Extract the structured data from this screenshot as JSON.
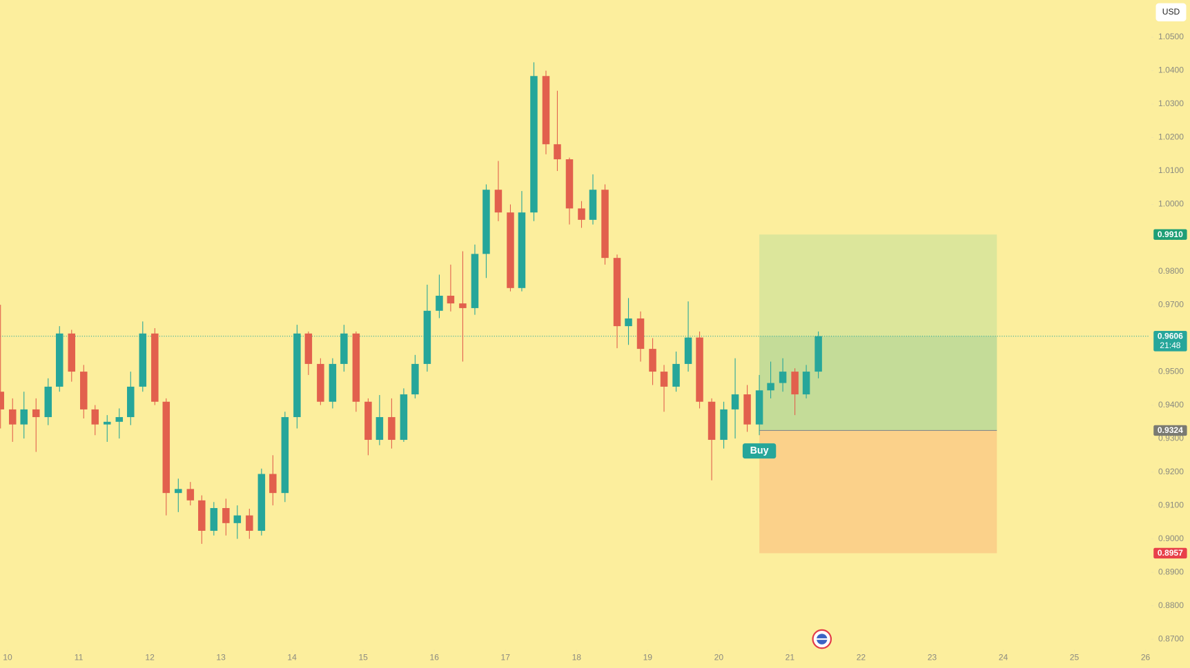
{
  "chart_data": {
    "type": "candlestick",
    "currency": "USD",
    "x": [
      9.9,
      10.07,
      10.23,
      10.4,
      10.57,
      10.73,
      10.9,
      11.07,
      11.23,
      11.4,
      11.57,
      11.73,
      11.9,
      12.07,
      12.23,
      12.4,
      12.57,
      12.73,
      12.9,
      13.07,
      13.23,
      13.4,
      13.57,
      13.73,
      13.9,
      14.07,
      14.23,
      14.4,
      14.57,
      14.73,
      14.9,
      15.07,
      15.23,
      15.4,
      15.57,
      15.73,
      15.9,
      16.07,
      16.23,
      16.4,
      16.57,
      16.73,
      16.9,
      17.07,
      17.23,
      17.4,
      17.57,
      17.73,
      17.9,
      18.07,
      18.23,
      18.4,
      18.57,
      18.73,
      18.9,
      19.07,
      19.23,
      19.4,
      19.57,
      19.73,
      19.9,
      20.07,
      20.23,
      20.4,
      20.57,
      20.73,
      20.9,
      21.07,
      21.23,
      21.4
    ],
    "open": [
      0.944,
      0.9387,
      0.9342,
      0.9387,
      0.9364,
      0.9455,
      0.9614,
      0.95,
      0.9387,
      0.9342,
      0.935,
      0.9364,
      0.9455,
      0.9614,
      0.941,
      0.9137,
      0.9149,
      0.9115,
      0.9024,
      0.9092,
      0.9047,
      0.907,
      0.9024,
      0.9194,
      0.9137,
      0.9364,
      0.9614,
      0.9523,
      0.941,
      0.9523,
      0.9614,
      0.941,
      0.9296,
      0.9364,
      0.9296,
      0.9432,
      0.9523,
      0.9682,
      0.9727,
      0.9704,
      0.969,
      0.9852,
      1.0044,
      0.9976,
      0.975,
      0.9976,
      1.0384,
      1.018,
      1.0135,
      0.9988,
      0.9954,
      1.0044,
      0.984,
      0.9636,
      0.9659,
      0.9568,
      0.95,
      0.9455,
      0.9523,
      0.9602,
      0.941,
      0.9296,
      0.9387,
      0.9432,
      0.9342,
      0.9444,
      0.9466,
      0.95,
      0.9432,
      0.95
    ],
    "high": [
      0.97,
      0.942,
      0.944,
      0.942,
      0.948,
      0.9636,
      0.9625,
      0.952,
      0.94,
      0.937,
      0.939,
      0.95,
      0.965,
      0.963,
      0.942,
      0.918,
      0.917,
      0.913,
      0.911,
      0.912,
      0.91,
      0.909,
      0.921,
      0.925,
      0.938,
      0.964,
      0.962,
      0.954,
      0.954,
      0.964,
      0.962,
      0.942,
      0.943,
      0.942,
      0.945,
      0.955,
      0.976,
      0.979,
      0.982,
      0.986,
      0.988,
      1.006,
      1.013,
      1.0,
      1.004,
      1.0425,
      1.04,
      1.034,
      1.014,
      1.001,
      1.009,
      1.006,
      0.985,
      0.972,
      0.968,
      0.96,
      0.952,
      0.956,
      0.971,
      0.962,
      0.942,
      0.941,
      0.954,
      0.946,
      0.949,
      0.953,
      0.954,
      0.951,
      0.952,
      0.962
    ],
    "low": [
      0.933,
      0.929,
      0.93,
      0.926,
      0.934,
      0.944,
      0.947,
      0.936,
      0.931,
      0.929,
      0.93,
      0.934,
      0.944,
      0.94,
      0.907,
      0.908,
      0.91,
      0.8985,
      0.901,
      0.901,
      0.9,
      0.9,
      0.901,
      0.91,
      0.911,
      0.933,
      0.949,
      0.94,
      0.939,
      0.95,
      0.938,
      0.925,
      0.928,
      0.927,
      0.929,
      0.942,
      0.95,
      0.966,
      0.968,
      0.953,
      0.967,
      0.978,
      0.995,
      0.974,
      0.974,
      0.995,
      1.015,
      1.01,
      0.994,
      0.993,
      0.994,
      0.982,
      0.957,
      0.958,
      0.953,
      0.946,
      0.938,
      0.944,
      0.95,
      0.939,
      0.9175,
      0.927,
      0.93,
      0.932,
      0.931,
      0.942,
      0.944,
      0.937,
      0.942,
      0.948
    ],
    "close": [
      0.9387,
      0.9342,
      0.9387,
      0.9364,
      0.9455,
      0.9614,
      0.95,
      0.9387,
      0.9342,
      0.935,
      0.9364,
      0.9455,
      0.9614,
      0.941,
      0.9137,
      0.9149,
      0.9115,
      0.9024,
      0.9092,
      0.9047,
      0.907,
      0.9024,
      0.9194,
      0.9137,
      0.9364,
      0.9614,
      0.9523,
      0.941,
      0.9523,
      0.9614,
      0.941,
      0.9296,
      0.9364,
      0.9296,
      0.9432,
      0.9523,
      0.9682,
      0.9727,
      0.9704,
      0.969,
      0.9852,
      1.0044,
      0.9976,
      0.975,
      0.9976,
      1.0384,
      1.018,
      1.0135,
      0.9988,
      0.9954,
      1.0044,
      0.984,
      0.9636,
      0.9659,
      0.9568,
      0.95,
      0.9455,
      0.9523,
      0.9602,
      0.941,
      0.9296,
      0.9387,
      0.9432,
      0.9342,
      0.9444,
      0.9466,
      0.95,
      0.9432,
      0.95,
      0.9606
    ],
    "up_color": "#26a69a",
    "down_color": "#e2604d",
    "background": "#fcee9d",
    "xlim": [
      9.893,
      26.06
    ],
    "ylim": [
      0.8673,
      1.0611
    ],
    "xticks": [
      10,
      11,
      12,
      13,
      14,
      15,
      16,
      17,
      18,
      19,
      20,
      21,
      22,
      23,
      24,
      25,
      26
    ],
    "yticks": [
      {
        "value": 1.05,
        "label": "1.0500"
      },
      {
        "value": 1.04,
        "label": "1.0400"
      },
      {
        "value": 1.03,
        "label": "1.0300"
      },
      {
        "value": 1.02,
        "label": "1.0200"
      },
      {
        "value": 1.01,
        "label": "1.0100"
      },
      {
        "value": 1.0,
        "label": "1.0000"
      },
      {
        "value": 0.99,
        "label": "0.9900"
      },
      {
        "value": 0.98,
        "label": "0.9800"
      },
      {
        "value": 0.97,
        "label": "0.9700"
      },
      {
        "value": 0.96,
        "label": "0.9600"
      },
      {
        "value": 0.95,
        "label": "0.9500"
      },
      {
        "value": 0.94,
        "label": "0.9400"
      },
      {
        "value": 0.93,
        "label": "0.9300"
      },
      {
        "value": 0.92,
        "label": "0.9200"
      },
      {
        "value": 0.91,
        "label": "0.9100"
      },
      {
        "value": 0.9,
        "label": "0.9000"
      },
      {
        "value": 0.89,
        "label": "0.8900"
      },
      {
        "value": 0.88,
        "label": "0.8800"
      },
      {
        "value": 0.87,
        "label": "0.8700"
      }
    ],
    "position": {
      "label": "Buy",
      "start": 20.57,
      "end": 23.91,
      "entry": 0.9324,
      "target": 0.991,
      "stop": 0.8957,
      "profit_color": "#dce69b",
      "loss_color": "#fbd18a",
      "reached_color": "#c4dc98"
    },
    "last_price": {
      "value": 0.9606,
      "label": "0.9606",
      "countdown": "21:48",
      "color": "#26a69a"
    },
    "price_tags": [
      {
        "value": 0.991,
        "label": "0.9910",
        "color": "#1e9e76"
      },
      {
        "value": 0.9324,
        "label": "0.9324",
        "color": "#7a7a72"
      },
      {
        "value": 0.8957,
        "label": "0.8957",
        "color": "#e8404a"
      }
    ]
  }
}
